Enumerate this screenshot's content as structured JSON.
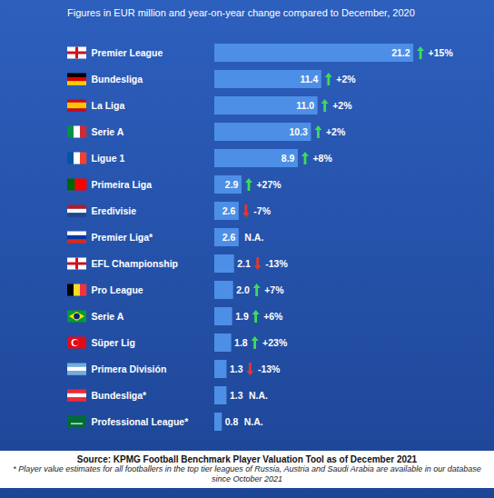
{
  "chart_data": {
    "type": "bar",
    "orientation": "horizontal",
    "title": "Figures in EUR million and year-on-year change compared to December, 2020",
    "categories": [
      "Premier League",
      "Bundesliga",
      "La Liga",
      "Serie A",
      "Ligue 1",
      "Primeira Liga",
      "Eredivisie",
      "Premier Liga*",
      "EFL Championship",
      "Pro League",
      "Serie A",
      "Süper Lig",
      "Primera División",
      "Bundesliga*",
      "Professional League*"
    ],
    "values": [
      21.2,
      11.4,
      11.0,
      10.3,
      8.9,
      2.9,
      2.6,
      2.6,
      2.1,
      2.0,
      1.9,
      1.8,
      1.3,
      1.3,
      0.8
    ],
    "value_labels": [
      "21.2",
      "11.4",
      "11.0",
      "10.3",
      "8.9",
      "2.9",
      "2.6",
      "2.6",
      "2.1",
      "2.0",
      "1.9",
      "1.8",
      "1.3",
      "1.3",
      "0.8"
    ],
    "changes": [
      15,
      2,
      2,
      2,
      8,
      27,
      -7,
      null,
      -13,
      7,
      6,
      23,
      -13,
      null,
      null
    ],
    "change_labels": [
      "+15%",
      "+2%",
      "+2%",
      "+2%",
      "+8%",
      "+27%",
      "-7%",
      "N.A.",
      "-13%",
      "+7%",
      "+6%",
      "+23%",
      "-13%",
      "N.A.",
      "N.A."
    ],
    "color": "#4d8fe6",
    "xlim": [
      0,
      24
    ],
    "data_labels": true,
    "tick_labels": false,
    "grid": false,
    "source": "Source: KPMG Football Benchmark Player Valuation Tool as of December 2021",
    "note": "* Player value estimates for all footballers in the top tier leagues of Russia, Austria and Saudi Arabia are available in our database since October 2021"
  }
}
